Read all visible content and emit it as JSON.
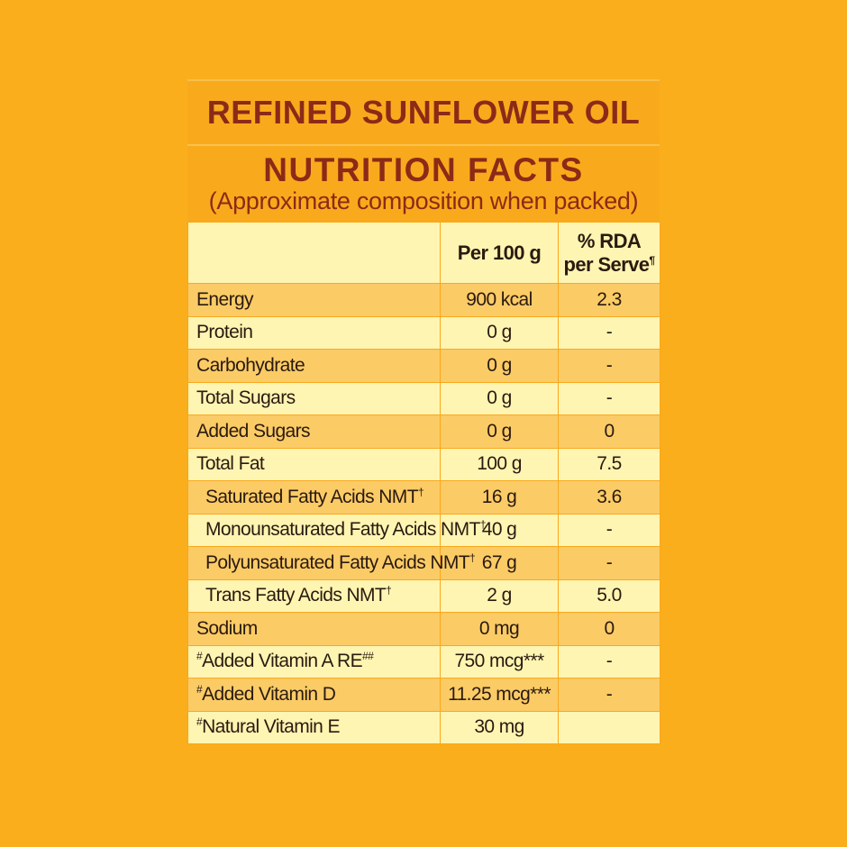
{
  "title": "REFINED SUNFLOWER OIL",
  "nutrition_title": "NUTRITION FACTS",
  "subtitle": "(Approximate composition when packed)",
  "header": {
    "col1": "",
    "col2": "Per 100 g",
    "col3_line1": "% RDA",
    "col3_line2": "per Serve",
    "col3_mark": "¶"
  },
  "rows": [
    {
      "pre": "",
      "label": "Energy",
      "mark": "",
      "per100": "900 kcal",
      "rda": "2.3"
    },
    {
      "pre": "",
      "label": "Protein",
      "mark": "",
      "per100": "0 g",
      "rda": "-"
    },
    {
      "pre": "",
      "label": "Carbohydrate",
      "mark": "",
      "per100": "0 g",
      "rda": "-"
    },
    {
      "pre": "",
      "label": "Total Sugars",
      "mark": "",
      "per100": "0 g",
      "rda": "-"
    },
    {
      "pre": "",
      "label": "Added Sugars",
      "mark": "",
      "per100": "0 g",
      "rda": "0"
    },
    {
      "pre": "",
      "label": "Total Fat",
      "mark": "",
      "per100": "100 g",
      "rda": "7.5"
    },
    {
      "pre": "",
      "label": "Saturated Fatty Acids NMT",
      "mark": "†",
      "per100": "16 g",
      "rda": "3.6"
    },
    {
      "pre": "",
      "label": "Monounsaturated Fatty Acids NMT",
      "mark": "†",
      "per100": "40 g",
      "rda": "-"
    },
    {
      "pre": "",
      "label": "Polyunsaturated Fatty Acids NMT",
      "mark": "†",
      "per100": "67 g",
      "rda": "-"
    },
    {
      "pre": "",
      "label": "Trans Fatty Acids NMT",
      "mark": "†",
      "per100": "2 g",
      "rda": "5.0"
    },
    {
      "pre": "",
      "label": "Sodium",
      "mark": "",
      "per100": "0 mg",
      "rda": "0"
    },
    {
      "pre": "#",
      "label": "Added Vitamin A RE",
      "mark": "##",
      "per100": "750 mcg***",
      "rda": "-"
    },
    {
      "pre": "#",
      "label": "Added Vitamin D",
      "mark": "",
      "per100": "11.25 mcg***",
      "rda": "-"
    },
    {
      "pre": "#",
      "label": "Natural Vitamin E",
      "mark": "",
      "per100": "30 mg",
      "rda": ""
    }
  ]
}
